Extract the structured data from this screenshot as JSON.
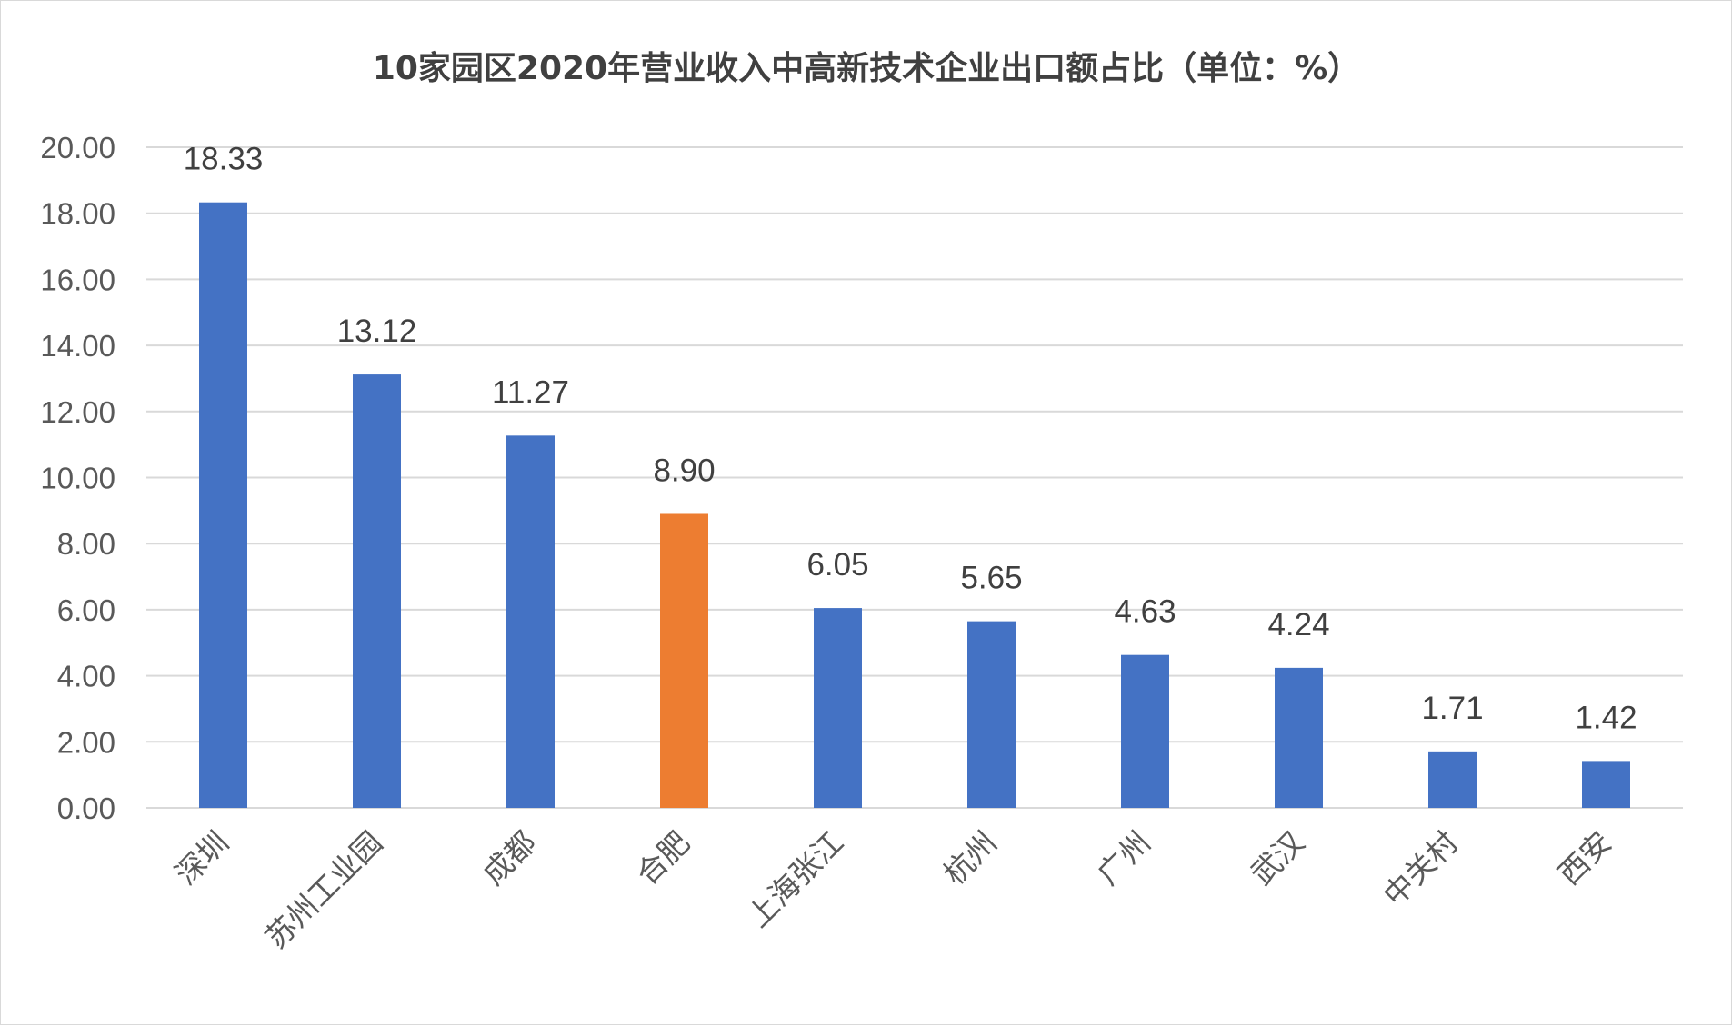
{
  "chart_data": {
    "type": "bar",
    "title": "10家园区2020年营业收入中高新技术企业出口额占比（单位：%）",
    "categories": [
      "深圳",
      "苏州工业园",
      "成都",
      "合肥",
      "上海张江",
      "杭州",
      "广州",
      "武汉",
      "中关村",
      "西安"
    ],
    "values": [
      18.33,
      13.12,
      11.27,
      8.9,
      6.05,
      5.65,
      4.63,
      4.24,
      1.71,
      1.42
    ],
    "value_labels": [
      "18.33",
      "13.12",
      "11.27",
      "8.90",
      "6.05",
      "5.65",
      "4.63",
      "4.24",
      "1.71",
      "1.42"
    ],
    "yticks": [
      "0.00",
      "2.00",
      "4.00",
      "6.00",
      "8.00",
      "10.00",
      "12.00",
      "14.00",
      "16.00",
      "18.00",
      "20.00"
    ],
    "ylim": [
      0,
      20
    ],
    "xlabel": "",
    "ylabel": "",
    "grid": true,
    "legend": "none",
    "colors": {
      "default_bar": "#4472C4",
      "highlight_bar": "#ED7D31",
      "highlight_category": "合肥",
      "gridline": "#d9d9d9"
    }
  }
}
